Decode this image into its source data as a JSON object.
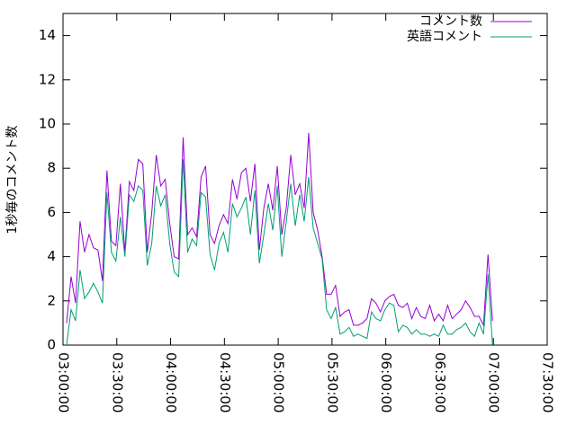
{
  "chart_data": {
    "type": "line",
    "ylabel": "1秒毎のコメント数",
    "x": [
      10920,
      11070,
      11220,
      11370,
      11520,
      11670,
      11820,
      11970,
      12120,
      12270,
      12420,
      12570,
      12720,
      12870,
      13020,
      13170,
      13320,
      13470,
      13620,
      13770,
      13920,
      14070,
      14220,
      14370,
      14520,
      14670,
      14820,
      14970,
      15120,
      15270,
      15420,
      15570,
      15720,
      15870,
      16020,
      16170,
      16320,
      16470,
      16620,
      16770,
      16920,
      17070,
      17220,
      17370,
      17520,
      17670,
      17820,
      17970,
      18120,
      18270,
      18420,
      18570,
      18720,
      18870,
      19020,
      19170,
      19320,
      19470,
      19620,
      19770,
      19920,
      20070,
      20220,
      20370,
      20520,
      20670,
      20820,
      20970,
      21120,
      21270,
      21420,
      21570,
      21720,
      21870,
      22020,
      22170,
      22320,
      22470,
      22620,
      22770,
      22920,
      23070,
      23220,
      23370,
      23520,
      23670,
      23820,
      23970,
      24120,
      24270,
      24420,
      24570,
      24720,
      24870,
      25020,
      25170
    ],
    "series": [
      {
        "name": "コメント数",
        "color": "#9400d3",
        "values": [
          1.0,
          3.1,
          1.9,
          5.6,
          4.2,
          5.0,
          4.4,
          4.3,
          2.9,
          7.9,
          4.7,
          4.5,
          7.3,
          4.2,
          7.4,
          7.0,
          8.4,
          8.2,
          4.2,
          6.0,
          8.6,
          7.2,
          7.5,
          5.5,
          4.0,
          3.9,
          9.4,
          5.0,
          5.3,
          4.9,
          7.6,
          8.1,
          5.0,
          4.6,
          5.4,
          5.9,
          5.5,
          7.5,
          6.6,
          7.8,
          8.0,
          6.5,
          8.2,
          4.3,
          6.2,
          7.3,
          6.1,
          8.1,
          5.0,
          6.2,
          8.6,
          6.8,
          7.3,
          6.2,
          9.6,
          6.0,
          5.2,
          4.0,
          2.3,
          2.3,
          2.7,
          1.3,
          1.5,
          1.6,
          0.9,
          0.9,
          1.0,
          1.2,
          2.1,
          1.9,
          1.5,
          2.0,
          2.2,
          2.3,
          1.8,
          1.7,
          1.9,
          1.2,
          1.7,
          1.3,
          1.2,
          1.8,
          1.1,
          1.4,
          1.1,
          1.8,
          1.2,
          1.4,
          1.6,
          2.0,
          1.7,
          1.3,
          1.3,
          0.9,
          4.1,
          1.1
        ]
      },
      {
        "name": "英語コメント",
        "color": "#009e73",
        "values": [
          0.0,
          1.6,
          1.1,
          3.4,
          2.1,
          2.4,
          2.8,
          2.4,
          1.9,
          6.9,
          4.2,
          3.8,
          5.8,
          4.0,
          6.8,
          6.5,
          7.2,
          7.0,
          3.6,
          4.6,
          7.2,
          6.3,
          6.8,
          4.6,
          3.3,
          3.1,
          8.4,
          4.2,
          4.8,
          4.5,
          6.9,
          6.7,
          4.1,
          3.4,
          4.6,
          5.1,
          4.2,
          6.4,
          5.8,
          6.2,
          6.7,
          5.0,
          7.0,
          3.7,
          5.0,
          6.4,
          5.2,
          7.2,
          4.0,
          5.6,
          7.3,
          5.4,
          6.8,
          5.6,
          7.6,
          5.3,
          4.6,
          3.9,
          1.6,
          1.2,
          1.7,
          0.5,
          0.6,
          0.8,
          0.4,
          0.5,
          0.4,
          0.3,
          1.5,
          1.2,
          1.1,
          1.6,
          1.9,
          1.8,
          0.6,
          0.9,
          0.8,
          0.5,
          0.7,
          0.5,
          0.5,
          0.4,
          0.5,
          0.4,
          0.9,
          0.5,
          0.5,
          0.7,
          0.8,
          1.0,
          0.6,
          0.4,
          1.0,
          0.5,
          3.2,
          0.0
        ]
      }
    ],
    "xlim": [
      10800,
      27000
    ],
    "xticks": [
      {
        "value": 10800,
        "label": "03:00:00"
      },
      {
        "value": 12600,
        "label": "03:30:00"
      },
      {
        "value": 14400,
        "label": "04:00:00"
      },
      {
        "value": 16200,
        "label": "04:30:00"
      },
      {
        "value": 18000,
        "label": "05:00:00"
      },
      {
        "value": 19800,
        "label": "05:30:00"
      },
      {
        "value": 21600,
        "label": "06:00:00"
      },
      {
        "value": 23400,
        "label": "06:30:00"
      },
      {
        "value": 25200,
        "label": "07:00:00"
      },
      {
        "value": 27000,
        "label": "07:30:00"
      }
    ],
    "ylim": [
      0,
      15
    ],
    "yticks": [
      0,
      2,
      4,
      6,
      8,
      10,
      12,
      14
    ],
    "grid": false,
    "legend": "top-right"
  }
}
